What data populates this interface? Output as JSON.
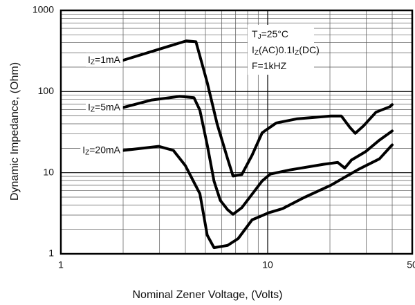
{
  "chart_data": {
    "type": "line",
    "log_x": true,
    "log_y": true,
    "grid": true,
    "color": "#000000",
    "xlabel": "Nominal Zener Voltage, (Volts)",
    "ylabel": "Dynamic Impedance, (Ohm)",
    "xlim": [
      1,
      50
    ],
    "xticks": [
      1,
      10,
      50
    ],
    "x_minor_ticks": [
      2,
      3,
      4,
      5,
      6,
      7,
      8,
      9,
      20,
      30,
      40
    ],
    "ylim": [
      1,
      1000
    ],
    "yticks": [
      1,
      10,
      100,
      1000
    ],
    "y_minor_ticks": [
      2,
      3,
      4,
      5,
      6,
      7,
      8,
      9,
      20,
      30,
      40,
      50,
      60,
      70,
      80,
      90,
      200,
      300,
      400,
      500,
      600,
      700,
      800,
      900
    ],
    "annotations": [
      [
        "T",
        "J",
        "=25°C"
      ],
      [
        "I",
        "Z",
        "(AC)0.1I",
        "Z",
        "(DC)"
      ],
      [
        "F=1kHZ"
      ]
    ],
    "series": [
      {
        "name": [
          "I",
          "Z",
          "=1mA"
        ],
        "color": "#000000",
        "x": [
          2,
          4.04,
          4.5,
          5.1,
          5.7,
          6.4,
          6.8,
          7.5,
          8.4,
          9.4,
          11,
          13.8,
          20.2,
          22.7,
          25,
          26.5,
          29,
          33.4,
          39,
          40
        ],
        "values": [
          243,
          421,
          410,
          129,
          39.6,
          14.8,
          9.1,
          9.5,
          16.4,
          31,
          41,
          46,
          50,
          50,
          36,
          30.6,
          37.5,
          55.6,
          65,
          69
        ]
      },
      {
        "name": [
          "I",
          "Z",
          "=5mA"
        ],
        "color": "#000000",
        "x": [
          2,
          2.75,
          3.75,
          4.4,
          4.7,
          5.1,
          5.5,
          5.9,
          6.4,
          6.8,
          7.5,
          9.4,
          10.3,
          12.8,
          18.7,
          21.8,
          23.6,
          25.4,
          29.7,
          34.7,
          40
        ],
        "values": [
          63.6,
          78.6,
          87,
          84,
          58.8,
          22,
          7.9,
          4.55,
          3.5,
          3.07,
          3.7,
          7.9,
          9.6,
          10.8,
          12.7,
          13.4,
          11.4,
          14.3,
          18.1,
          25.2,
          32.6
        ]
      },
      {
        "name": [
          "I",
          "Z",
          "=20mA"
        ],
        "color": "#000000",
        "x": [
          2,
          2.97,
          3.5,
          4.0,
          4.7,
          5.1,
          5.5,
          6.4,
          7.2,
          8.4,
          10.1,
          11.8,
          14.9,
          20.2,
          27.5,
          34.7,
          40
        ],
        "values": [
          18.8,
          21.1,
          18.8,
          12.2,
          5.5,
          1.7,
          1.19,
          1.27,
          1.54,
          2.62,
          3.2,
          3.6,
          4.9,
          7.0,
          11,
          14.8,
          22
        ]
      }
    ]
  }
}
